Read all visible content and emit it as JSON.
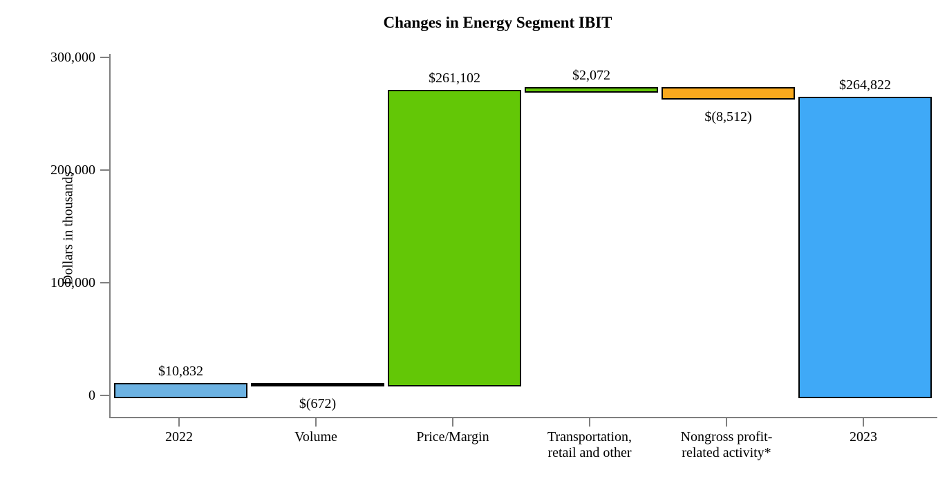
{
  "chart_data": {
    "type": "bar",
    "subtype": "waterfall",
    "title": "Changes in Energy Segment IBIT",
    "ylabel": "Dollars in thousands",
    "ylim": [
      0,
      300000
    ],
    "grid": false,
    "legend": "none",
    "background_color": "#FFFFFF",
    "axis_color": "#7F7F7F",
    "bar_border_color": "#000000",
    "yticks": [
      {
        "value": 0,
        "label": "0"
      },
      {
        "value": 100000,
        "label": "100,000"
      },
      {
        "value": 200000,
        "label": "200,000"
      },
      {
        "value": 300000,
        "label": "300,000"
      }
    ],
    "categories": [
      "2022",
      "Volume",
      "Price/Margin",
      "Transportation,\nretail and other",
      "Nongross profit-\nrelated activity*",
      "2023"
    ],
    "bars": [
      {
        "category": "2022",
        "start": 0,
        "end": 10832,
        "value": 10832,
        "value_label": "$10,832",
        "label_position": "above",
        "color": "#6CB2E2"
      },
      {
        "category": "Volume",
        "start": 10832,
        "end": 10160,
        "value": -672,
        "value_label": "$(672)",
        "label_position": "below",
        "color": "#000000"
      },
      {
        "category": "Price/Margin",
        "start": 10160,
        "end": 271262,
        "value": 261102,
        "value_label": "$261,102",
        "label_position": "above",
        "color": "#63C706"
      },
      {
        "category": "Transportation,\nretail and other",
        "start": 271262,
        "end": 273334,
        "value": 2072,
        "value_label": "$2,072",
        "label_position": "above",
        "color": "#63C706"
      },
      {
        "category": "Nongross profit-\nrelated activity*",
        "start": 273334,
        "end": 264822,
        "value": -8512,
        "value_label": "$(8,512)",
        "label_position": "below",
        "color": "#FAA91D"
      },
      {
        "category": "2023",
        "start": 0,
        "end": 264822,
        "value": 264822,
        "value_label": "$264,822",
        "label_position": "above",
        "color": "#3FA9F7"
      }
    ]
  }
}
